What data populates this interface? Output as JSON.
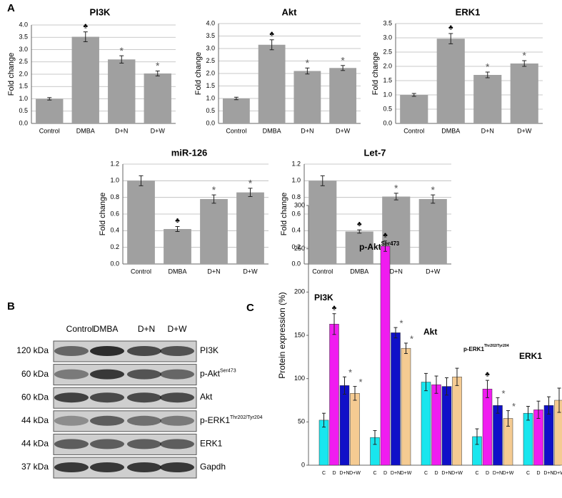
{
  "panel_labels": [
    "A",
    "B",
    "C"
  ],
  "chart_data": [
    {
      "type": "bar",
      "title": "PI3K",
      "y_label": "Fold change",
      "grid": true,
      "color": "#a0a0a0",
      "categories": [
        "Control",
        "DMBA",
        "D+N",
        "D+W"
      ],
      "values": [
        1.0,
        3.52,
        2.6,
        2.03
      ],
      "errors": [
        0.05,
        0.2,
        0.15,
        0.1
      ],
      "markers": [
        null,
        "♣",
        "*",
        "*"
      ],
      "ylim": [
        0,
        4
      ],
      "yticks": [
        {
          "value": 0,
          "label": "0.0"
        },
        0.5,
        {
          "value": 1,
          "label": "1.0"
        },
        1.5,
        {
          "value": 2,
          "label": "2.0"
        },
        2.5,
        {
          "value": 3,
          "label": "3.0"
        },
        3.5,
        {
          "value": 4,
          "label": "4.0"
        }
      ]
    },
    {
      "type": "bar",
      "title": "Akt",
      "y_label": "Fold change",
      "grid": true,
      "color": "#a0a0a0",
      "categories": [
        "Control",
        "DMBA",
        "D+N",
        "D+W"
      ],
      "values": [
        1.0,
        3.15,
        2.1,
        2.22
      ],
      "errors": [
        0.05,
        0.2,
        0.12,
        0.1
      ],
      "markers": [
        null,
        "♣",
        "*",
        "*"
      ],
      "ylim": [
        0,
        4
      ],
      "yticks": [
        {
          "value": 0,
          "label": "0.0"
        },
        0.5,
        {
          "value": 1,
          "label": "1.0"
        },
        1.5,
        {
          "value": 2,
          "label": "2.0"
        },
        2.5,
        {
          "value": 3,
          "label": "3.0"
        },
        3.5,
        {
          "value": 4,
          "label": "4.0"
        }
      ]
    },
    {
      "type": "bar",
      "title": "ERK1",
      "y_label": "Fold change",
      "grid": true,
      "color": "#a0a0a0",
      "categories": [
        "Control",
        "DMBA",
        "D+N",
        "D+W"
      ],
      "values": [
        1.0,
        2.97,
        1.7,
        2.1
      ],
      "errors": [
        0.05,
        0.18,
        0.1,
        0.1
      ],
      "markers": [
        null,
        "♣",
        "*",
        "*"
      ],
      "ylim": [
        0,
        3.5
      ],
      "yticks": [
        {
          "value": 0,
          "label": "0.0"
        },
        0.5,
        {
          "value": 1,
          "label": "1.0"
        },
        1.5,
        {
          "value": 2,
          "label": "2.0"
        },
        2.5,
        {
          "value": 3,
          "label": "3.0"
        },
        3.5
      ]
    },
    {
      "type": "bar",
      "title": "miR-126",
      "y_label": "Fold change",
      "grid": true,
      "color": "#a0a0a0",
      "categories": [
        "Control",
        "DMBA",
        "D+N",
        "D+W"
      ],
      "values": [
        1.0,
        0.42,
        0.78,
        0.86
      ],
      "errors": [
        0.06,
        0.03,
        0.05,
        0.05
      ],
      "markers": [
        null,
        "♣",
        "*",
        "*"
      ],
      "ylim": [
        0,
        1.2
      ],
      "yticks": [
        {
          "value": 0,
          "label": "0.0"
        },
        0.2,
        0.4,
        0.6,
        0.8,
        {
          "value": 1,
          "label": "1.0"
        },
        1.2
      ]
    },
    {
      "type": "bar",
      "title": "Let-7",
      "y_label": "Fold change",
      "grid": true,
      "color": "#a0a0a0",
      "categories": [
        "Control",
        "DMBA",
        "D+N",
        "D+W"
      ],
      "values": [
        1.0,
        0.39,
        0.81,
        0.78
      ],
      "errors": [
        0.06,
        0.02,
        0.04,
        0.05
      ],
      "markers": [
        null,
        "♣",
        "*",
        "*"
      ],
      "ylim": [
        0,
        1.2
      ],
      "yticks": [
        {
          "value": 0,
          "label": "0.0"
        },
        0.2,
        0.4,
        0.6,
        0.8,
        {
          "value": 1,
          "label": "1.0"
        },
        1.2
      ]
    },
    {
      "type": "grouped_bar",
      "y_label": "Protein expression (%)",
      "grid": false,
      "categories": [
        "PI3K",
        "p-Akt",
        "Akt",
        "p-ERK1",
        "ERK1"
      ],
      "category_superscripts": [
        null,
        "Ser473",
        null,
        "Thr202/Tyr204",
        null
      ],
      "series": [
        {
          "name": "C",
          "color": "#19e6ee",
          "values": [
            52,
            32,
            96,
            33,
            60
          ],
          "errors": [
            8,
            8,
            10,
            9,
            8
          ],
          "markers": [
            null,
            null,
            null,
            null,
            null
          ]
        },
        {
          "name": "D",
          "color": "#f01cf0",
          "values": [
            163,
            253,
            93,
            88,
            64
          ],
          "errors": [
            12,
            6,
            10,
            10,
            10
          ],
          "markers": [
            "♣",
            "♣",
            null,
            "♣",
            null
          ]
        },
        {
          "name": "D+N",
          "color": "#1010c8",
          "values": [
            92,
            153,
            91,
            69,
            69
          ],
          "errors": [
            10,
            6,
            10,
            9,
            10
          ],
          "markers": [
            "*",
            "*",
            null,
            "*",
            null
          ]
        },
        {
          "name": "D+W",
          "color": "#f5cb92",
          "values": [
            83,
            135,
            102,
            54,
            75
          ],
          "errors": [
            8,
            6,
            10,
            9,
            14
          ],
          "markers": [
            "*",
            "*",
            null,
            "*",
            null
          ]
        }
      ],
      "ylim": [
        0,
        300
      ],
      "yticks": [
        0,
        50,
        100,
        150,
        200,
        250,
        300
      ]
    }
  ],
  "blot": {
    "lanes": [
      "Control",
      "DMBA",
      "D+N",
      "D+W"
    ],
    "rows": [
      {
        "size": "120 kDa",
        "protein": "PI3K",
        "superscript": null
      },
      {
        "size": "60 kDa",
        "protein": "p-Akt",
        "superscript": "Ser473"
      },
      {
        "size": "60 kDa",
        "protein": "Akt",
        "superscript": null
      },
      {
        "size": "44 kDa",
        "protein": "p-ERK1",
        "superscript": "Thr202/Tyr204"
      },
      {
        "size": "44 kDa",
        "protein": "ERK1",
        "superscript": null
      },
      {
        "size": "37 kDa",
        "protein": "Gapdh",
        "superscript": null
      }
    ]
  }
}
